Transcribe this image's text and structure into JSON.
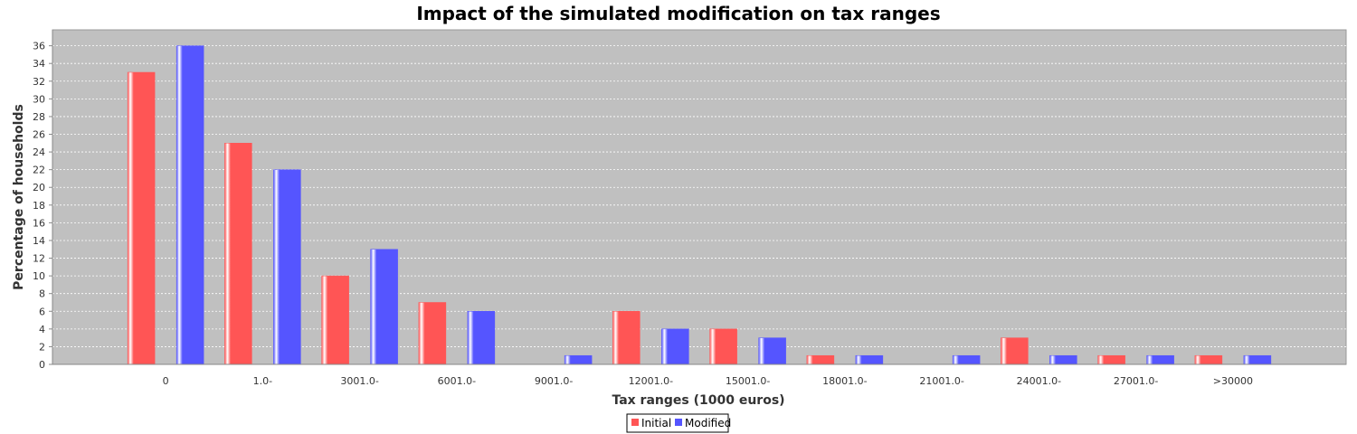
{
  "chart_data": {
    "type": "bar",
    "title": "Impact of the simulated modification on tax ranges",
    "xlabel": "Tax ranges (1000 euros)",
    "ylabel": "Percentage of households",
    "categories": [
      "0",
      "1.0-",
      "3001.0-",
      "6001.0-",
      "9001.0-",
      "12001.0-",
      "15001.0-",
      "18001.0-",
      "21001.0-",
      "24001.0-",
      "27001.0-",
      ">30000"
    ],
    "series": [
      {
        "name": "Initial",
        "color": "#ff5555",
        "values": [
          33,
          25,
          10,
          7,
          0,
          6,
          4,
          1,
          0,
          3,
          1,
          1
        ]
      },
      {
        "name": "Modified",
        "color": "#5555ff",
        "values": [
          36,
          22,
          13,
          6,
          1,
          4,
          3,
          1,
          1,
          1,
          1,
          1
        ]
      }
    ],
    "ylim": [
      0,
      37.8
    ],
    "yticks": [
      0,
      2,
      4,
      6,
      8,
      10,
      12,
      14,
      16,
      18,
      20,
      22,
      24,
      26,
      28,
      30,
      32,
      34,
      36
    ],
    "grid": true,
    "legend": "bottom-center",
    "plot_background": "#c0c0c0"
  }
}
